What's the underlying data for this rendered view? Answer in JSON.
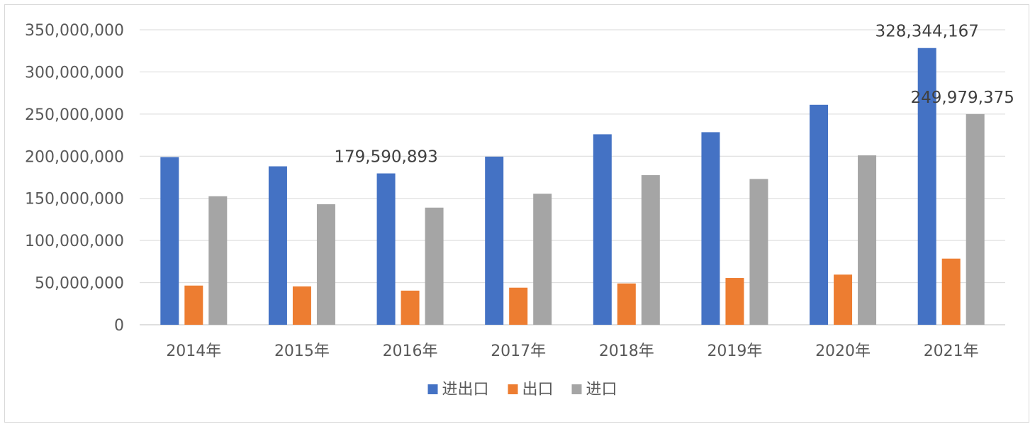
{
  "chart_data": {
    "type": "bar",
    "categories": [
      "2014年",
      "2015年",
      "2016年",
      "2017年",
      "2018年",
      "2019年",
      "2020年",
      "2021年"
    ],
    "series": [
      {
        "name": "进出口",
        "color": "#4472c4",
        "values": [
          199000000,
          188000000,
          179590893,
          199500000,
          226000000,
          228500000,
          261000000,
          328344167
        ]
      },
      {
        "name": "出口",
        "color": "#ed7d31",
        "values": [
          46500000,
          45500000,
          40500000,
          44000000,
          49000000,
          55500000,
          59500000,
          78500000
        ]
      },
      {
        "name": "进口",
        "color": "#a5a5a5",
        "values": [
          152500000,
          143000000,
          139000000,
          155500000,
          177500000,
          173000000,
          201000000,
          249979375
        ]
      }
    ],
    "yticks": [
      "0",
      "50,000,000",
      "100,000,000",
      "150,000,000",
      "200,000,000",
      "250,000,000",
      "300,000,000",
      "350,000,000"
    ],
    "ylim": [
      0,
      350000000
    ],
    "data_labels": [
      {
        "series": 0,
        "category": 2,
        "text": "179,590,893"
      },
      {
        "series": 0,
        "category": 7,
        "text": "328,344,167"
      },
      {
        "series": 2,
        "category": 7,
        "text": "249,979,375"
      }
    ],
    "title": "",
    "xlabel": "",
    "ylabel": "",
    "grid": true,
    "legend_position": "bottom"
  }
}
